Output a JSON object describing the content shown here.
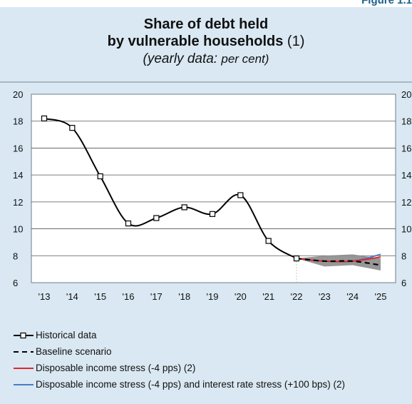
{
  "figure_label": "Figure 1.1",
  "title": {
    "line1": "Share of debt held",
    "line2_bold": "by vulnerable households",
    "line2_note": " (1)",
    "subtitle_main": "(yearly data: ",
    "subtitle_unit": "per cent)"
  },
  "colors": {
    "background": "#d9e8f2",
    "historical": "#000000",
    "baseline": "#000000",
    "income_stress": "#e0262b",
    "income_rate_stress": "#4a7cc4",
    "band": "#8c8c8c"
  },
  "chart_data": {
    "type": "line",
    "x": [
      "'13",
      "'14",
      "'15",
      "'16",
      "'17",
      "'18",
      "'19",
      "'20",
      "'21",
      "'22",
      "'23",
      "'24",
      "'25"
    ],
    "ylim": [
      6,
      20
    ],
    "yticks": [
      "6",
      "8",
      "10",
      "12",
      "14",
      "16",
      "18",
      "20"
    ],
    "yticks_right": [
      "6",
      "8",
      "10",
      "12",
      "14",
      "16",
      "18",
      "20"
    ],
    "grid": true,
    "series": [
      {
        "name": "Historical data",
        "style": "line-with-square-markers",
        "values": [
          18.2,
          17.5,
          13.9,
          10.4,
          10.8,
          11.6,
          11.1,
          12.5,
          9.1,
          7.8,
          null,
          null,
          null
        ]
      },
      {
        "name": "Baseline scenario",
        "style": "dashed",
        "values": [
          null,
          null,
          null,
          null,
          null,
          null,
          null,
          null,
          null,
          7.8,
          7.6,
          7.6,
          7.3
        ]
      },
      {
        "name": "Disposable income stress (-4 pps) (2)",
        "style": "solid",
        "values": [
          null,
          null,
          null,
          null,
          null,
          null,
          null,
          null,
          null,
          7.8,
          7.6,
          7.6,
          7.9
        ]
      },
      {
        "name": "Disposable income stress (-4 pps) and interest rate stress (+100 bps) (2)",
        "style": "solid",
        "values": [
          null,
          null,
          null,
          null,
          null,
          null,
          null,
          null,
          null,
          7.8,
          7.6,
          7.6,
          8.1
        ]
      }
    ],
    "band": {
      "lower": [
        7.8,
        7.2,
        7.3,
        6.9
      ],
      "upper": [
        7.8,
        8.0,
        8.1,
        7.8
      ]
    },
    "legend_position": "bottom"
  },
  "legend": [
    {
      "label": "Historical data",
      "key": "historical"
    },
    {
      "label": "Baseline scenario",
      "key": "baseline"
    },
    {
      "label": "Disposable income stress (-4 pps) (2)",
      "key": "income"
    },
    {
      "label": "Disposable income stress (-4 pps) and interest rate stress (+100 bps) (2)",
      "key": "rate"
    }
  ]
}
